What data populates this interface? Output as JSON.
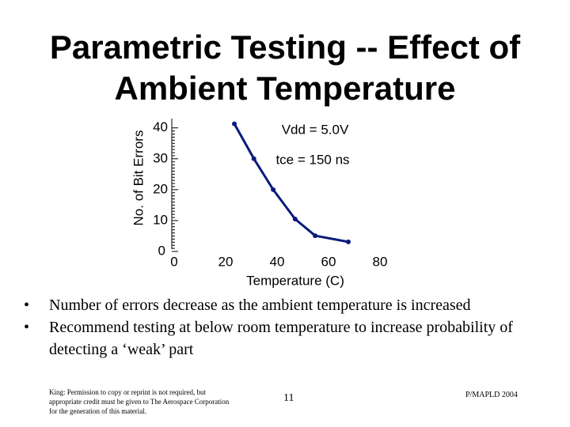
{
  "title": "Parametric Testing -- Effect of Ambient Temperature",
  "chart_data": {
    "type": "line",
    "x_label": "Temperature (C)",
    "y_label": "No. of Bit Errors",
    "x": [
      23.4,
      31,
      38.5,
      47,
      54.8,
      67.7
    ],
    "values": [
      41.3,
      30,
      20,
      10.5,
      5.1,
      3.1
    ],
    "color": "#0a1a7a",
    "xlim": [
      0,
      80
    ],
    "xticks": [
      0,
      20,
      40,
      60,
      80
    ],
    "ylim": [
      0,
      43
    ],
    "yticks": [
      0,
      10,
      20,
      30,
      40
    ],
    "annotations": [
      "Vdd = 5.0V",
      "tce = 150 ns"
    ]
  },
  "bullets": [
    "Number of errors decrease as the ambient temperature is increased",
    "Recommend testing at below room temperature to increase probability of detecting a ‘weak’ part"
  ],
  "footer": {
    "credit": "King: Permission to copy or reprint is not required, but appropriate credit must be given to The Aerospace Corporation for the generation of this material.",
    "page": 11,
    "source": "P/MAPLD 2004"
  }
}
